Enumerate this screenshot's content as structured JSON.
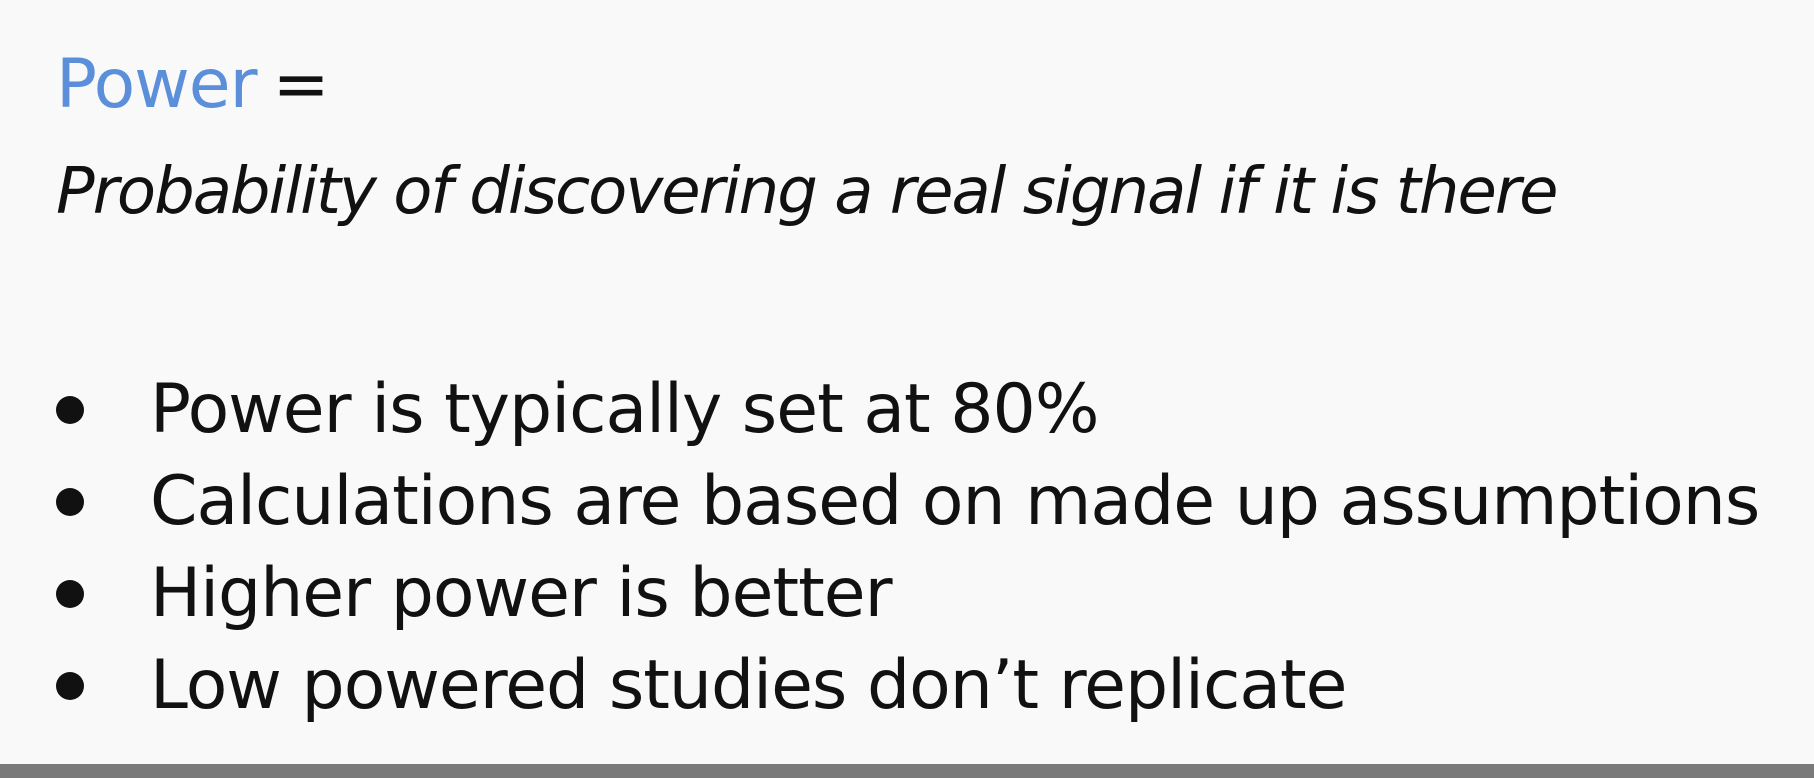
{
  "heading": {
    "term": "Power",
    "operator": "="
  },
  "definition": "Probability of discovering a real signal if it is there",
  "bullets": [
    "Power is typically set at 80%",
    "Calculations are based on made up assumptions",
    "Higher power is better",
    "Low powered studies don’t replicate"
  ],
  "colors": {
    "accent": "#5b8fd9",
    "text": "#111111",
    "background": "#f9f9f9",
    "bottom_bar": "#7a7a7a"
  }
}
